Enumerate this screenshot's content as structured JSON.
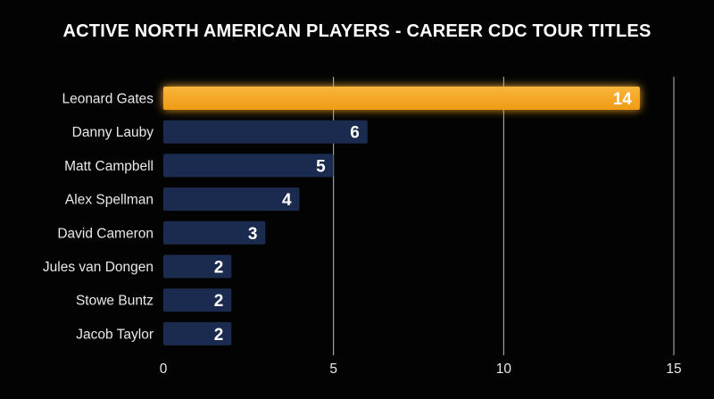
{
  "chart_data": {
    "type": "bar",
    "orientation": "horizontal",
    "title": "ACTIVE NORTH AMERICAN PLAYERS - CAREER CDC TOUR TITLES",
    "xlabel": "",
    "ylabel": "",
    "categories": [
      "Leonard Gates",
      "Danny Lauby",
      "Matt Campbell",
      "Alex Spellman",
      "David Cameron",
      "Jules van Dongen",
      "Stowe Buntz",
      "Jacob Taylor"
    ],
    "values": [
      14,
      6,
      5,
      4,
      3,
      2,
      2,
      2
    ],
    "highlight_index": 0,
    "xlim": [
      0,
      15
    ],
    "xticks": [
      0,
      5,
      10,
      15
    ],
    "grid": true,
    "colors": {
      "bar": "#1b2b4f",
      "highlight": "#f5a623",
      "highlight_glow": "#f7b331",
      "text": "#ffffff",
      "background": "#030303"
    }
  }
}
